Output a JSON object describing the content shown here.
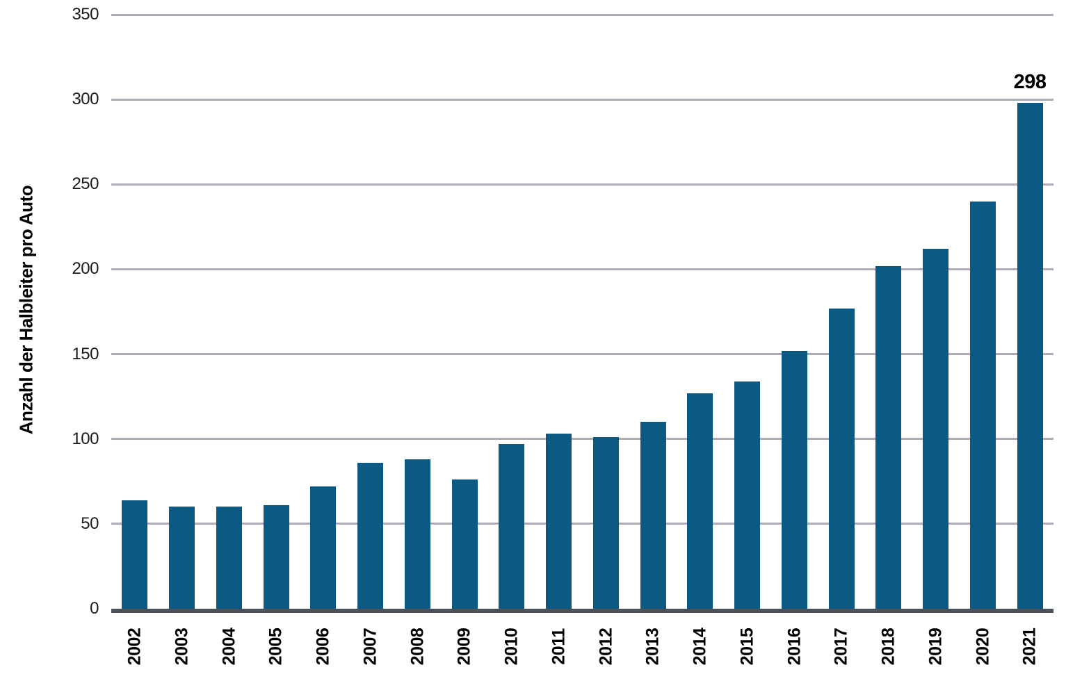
{
  "chart_data": {
    "type": "bar",
    "title": "",
    "ylabel": "Anzahl der Halbleiter pro Auto",
    "xlabel": "",
    "categories": [
      "2002",
      "2003",
      "2004",
      "2005",
      "2006",
      "2007",
      "2008",
      "2009",
      "2010",
      "2011",
      "2012",
      "2013",
      "2014",
      "2015",
      "2016",
      "2017",
      "2018",
      "2019",
      "2020",
      "2021"
    ],
    "values": [
      64,
      60,
      60,
      61,
      72,
      86,
      88,
      76,
      97,
      103,
      101,
      110,
      127,
      134,
      152,
      177,
      202,
      212,
      240,
      298
    ],
    "ylim": [
      0,
      350
    ],
    "yticks": [
      0,
      50,
      100,
      150,
      200,
      250,
      300,
      350
    ],
    "grid": true,
    "legend": "none",
    "bar_color": "#0A5A83",
    "gridline_color": "#A9AEB6",
    "axis_color": "#4A5158",
    "text_color": "#111111",
    "annotations": [
      {
        "category": "2021",
        "text": "298"
      }
    ]
  }
}
